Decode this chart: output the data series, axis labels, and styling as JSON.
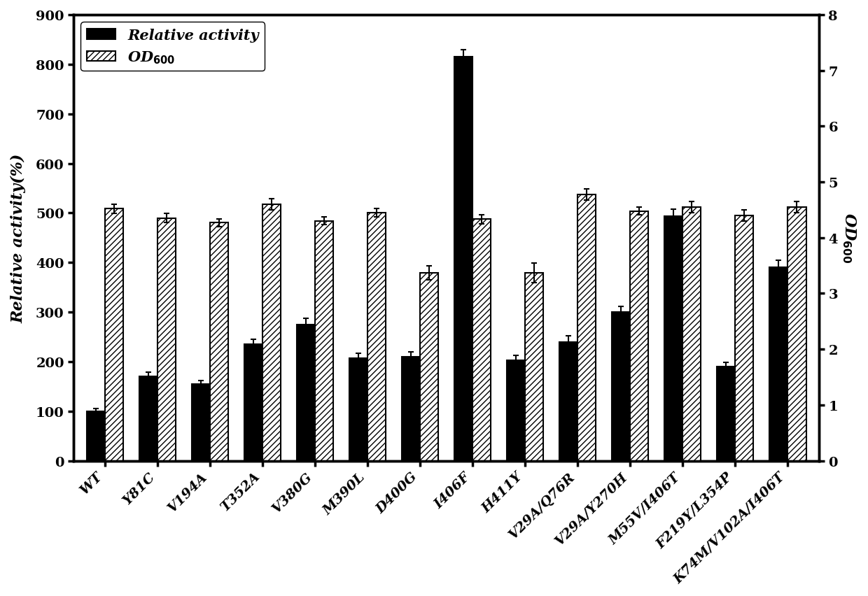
{
  "categories": [
    "WT",
    "Y81C",
    "V194A",
    "T352A",
    "V380G",
    "M390L",
    "D400G",
    "I406F",
    "H411Y",
    "V29A/Q76R",
    "V29A/Y270H",
    "M55V/I406T",
    "F219Y/L354P",
    "K74M/V102A/I406T"
  ],
  "relative_activity": [
    100,
    170,
    155,
    235,
    275,
    207,
    210,
    815,
    203,
    240,
    300,
    493,
    190,
    390
  ],
  "relative_activity_err": [
    5,
    8,
    7,
    10,
    12,
    10,
    10,
    15,
    10,
    12,
    12,
    15,
    9,
    15
  ],
  "od600": [
    4.52,
    4.35,
    4.27,
    4.6,
    4.3,
    4.45,
    3.37,
    4.33,
    3.37,
    4.78,
    4.48,
    4.55,
    4.4,
    4.55
  ],
  "od600_err": [
    0.08,
    0.08,
    0.07,
    0.1,
    0.07,
    0.08,
    0.12,
    0.08,
    0.18,
    0.1,
    0.07,
    0.1,
    0.1,
    0.1
  ],
  "bar_color_activity": "#000000",
  "bar_color_od": "#ffffff",
  "hatch_od": "////",
  "bar_edgecolor": "#000000",
  "ylabel_left": "Relative activity(%)",
  "ylabel_right": "OD$_{600}$",
  "ylim_left": [
    0,
    900
  ],
  "ylim_right": [
    0,
    8
  ],
  "yticks_left": [
    0,
    100,
    200,
    300,
    400,
    500,
    600,
    700,
    800,
    900
  ],
  "yticks_right": [
    0,
    1,
    2,
    3,
    4,
    5,
    6,
    7,
    8
  ],
  "legend_labels": [
    "Relative activity",
    "OD$_{600}$"
  ],
  "figsize": [
    12.4,
    8.53
  ],
  "dpi": 100,
  "bar_width": 0.35,
  "fontsize_axis": 16,
  "fontsize_tick": 14,
  "fontsize_legend": 15,
  "spine_linewidth": 2.5,
  "bar_linewidth": 1.5
}
